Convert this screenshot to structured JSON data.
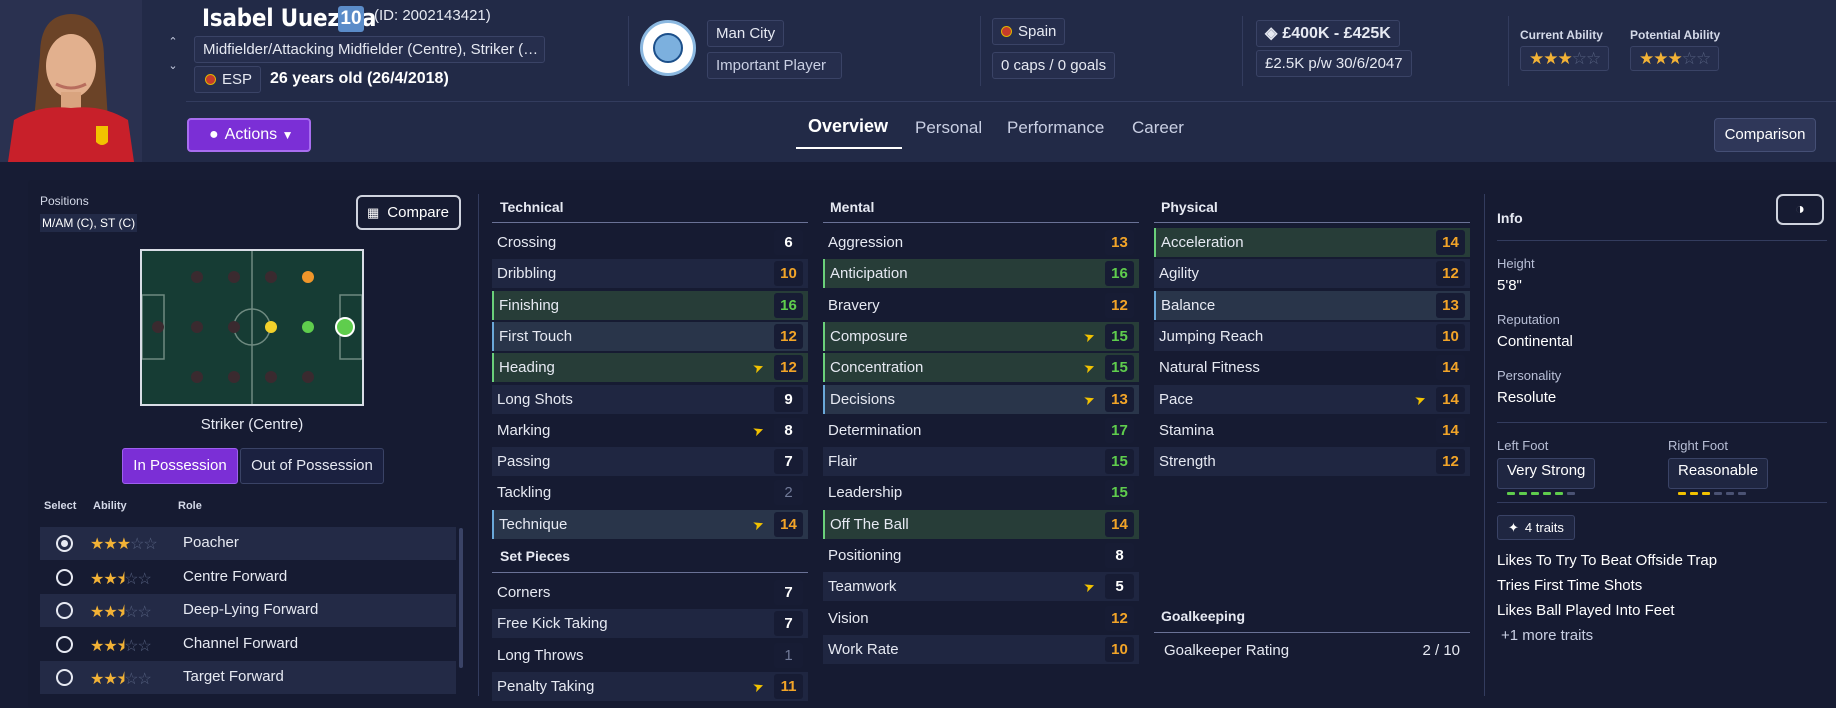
{
  "header": {
    "player_name": "Isabel Uueziua",
    "squad_number": "10",
    "player_id": "(ID: 2002143421)",
    "positions": "Midfielder/Attacking Midfielder (Centre), Striker (…",
    "nationality_code": "ESP",
    "age": "26 years old (26/4/2018)",
    "club": "Man City",
    "squad_status": "Important Player",
    "nation": "Spain",
    "caps": "0 caps / 0 goals",
    "value": "£400K - £425K",
    "wage_contract": "£2.5K p/w 30/6/2047",
    "current_ability_label": "Current Ability",
    "potential_ability_label": "Potential Ability",
    "current_ability_stars": 3,
    "potential_ability_stars": 3
  },
  "nav": {
    "actions_label": "Actions",
    "tabs": [
      "Overview",
      "Personal",
      "Performance",
      "Career"
    ],
    "active_tab": "Overview",
    "comparison_label": "Comparison"
  },
  "positions_panel": {
    "label": "Positions",
    "value": "M/AM (C), ST (C)",
    "compare_label": "Compare",
    "selected_position": "Striker (Centre)",
    "toggle_in": "In Possession",
    "toggle_out": "Out of Possession",
    "col_select": "Select",
    "col_ability": "Ability",
    "col_role": "Role",
    "roles": [
      {
        "name": "Poacher",
        "stars": 3.0,
        "selected": true
      },
      {
        "name": "Centre Forward",
        "stars": 2.5,
        "selected": false
      },
      {
        "name": "Deep-Lying Forward",
        "stars": 2.5,
        "selected": false
      },
      {
        "name": "Channel Forward",
        "stars": 2.5,
        "selected": false
      },
      {
        "name": "Target Forward",
        "stars": 2.5,
        "selected": false
      }
    ]
  },
  "technical": {
    "title": "Technical",
    "attrs": [
      {
        "name": "Crossing",
        "value": "6"
      },
      {
        "name": "Dribbling",
        "value": "10"
      },
      {
        "name": "Finishing",
        "value": "16"
      },
      {
        "name": "First Touch",
        "value": "12"
      },
      {
        "name": "Heading",
        "value": "12"
      },
      {
        "name": "Long Shots",
        "value": "9"
      },
      {
        "name": "Marking",
        "value": "8"
      },
      {
        "name": "Passing",
        "value": "7"
      },
      {
        "name": "Tackling",
        "value": "2"
      },
      {
        "name": "Technique",
        "value": "14"
      }
    ]
  },
  "set_pieces": {
    "title": "Set Pieces",
    "attrs": [
      {
        "name": "Corners",
        "value": "7"
      },
      {
        "name": "Free Kick Taking",
        "value": "7"
      },
      {
        "name": "Long Throws",
        "value": "1"
      },
      {
        "name": "Penalty Taking",
        "value": "11"
      }
    ]
  },
  "mental": {
    "title": "Mental",
    "attrs": [
      {
        "name": "Aggression",
        "value": "13"
      },
      {
        "name": "Anticipation",
        "value": "16"
      },
      {
        "name": "Bravery",
        "value": "12"
      },
      {
        "name": "Composure",
        "value": "15"
      },
      {
        "name": "Concentration",
        "value": "15"
      },
      {
        "name": "Decisions",
        "value": "13"
      },
      {
        "name": "Determination",
        "value": "17"
      },
      {
        "name": "Flair",
        "value": "15"
      },
      {
        "name": "Leadership",
        "value": "15"
      },
      {
        "name": "Off The Ball",
        "value": "14"
      },
      {
        "name": "Positioning",
        "value": "8"
      },
      {
        "name": "Teamwork",
        "value": "5"
      },
      {
        "name": "Vision",
        "value": "12"
      },
      {
        "name": "Work Rate",
        "value": "10"
      }
    ]
  },
  "physical": {
    "title": "Physical",
    "attrs": [
      {
        "name": "Acceleration",
        "value": "14"
      },
      {
        "name": "Agility",
        "value": "12"
      },
      {
        "name": "Balance",
        "value": "13"
      },
      {
        "name": "Jumping Reach",
        "value": "10"
      },
      {
        "name": "Natural Fitness",
        "value": "14"
      },
      {
        "name": "Pace",
        "value": "14"
      },
      {
        "name": "Stamina",
        "value": "14"
      },
      {
        "name": "Strength",
        "value": "12"
      }
    ]
  },
  "goalkeeping": {
    "title": "Goalkeeping",
    "rating_label": "Goalkeeper Rating",
    "rating_value": "2 / 10"
  },
  "info": {
    "title": "Info",
    "height_label": "Height",
    "height": "5'8\"",
    "reputation_label": "Reputation",
    "reputation": "Continental",
    "personality_label": "Personality",
    "personality": "Resolute",
    "left_foot_label": "Left Foot",
    "left_foot": "Very Strong",
    "left_foot_level": 5,
    "right_foot_label": "Right Foot",
    "right_foot": "Reasonable",
    "right_foot_level": 3,
    "traits_count": "4 traits",
    "traits": [
      "Likes To Try To Beat Offside Trap",
      "Tries First Time Shots",
      "Likes Ball Played Into Feet"
    ],
    "more_traits": "+1 more traits"
  },
  "colors": {
    "accent": "#7b2fd6",
    "green": "#5fcd4d",
    "orange": "#f2a428",
    "star": "#f2b236"
  }
}
